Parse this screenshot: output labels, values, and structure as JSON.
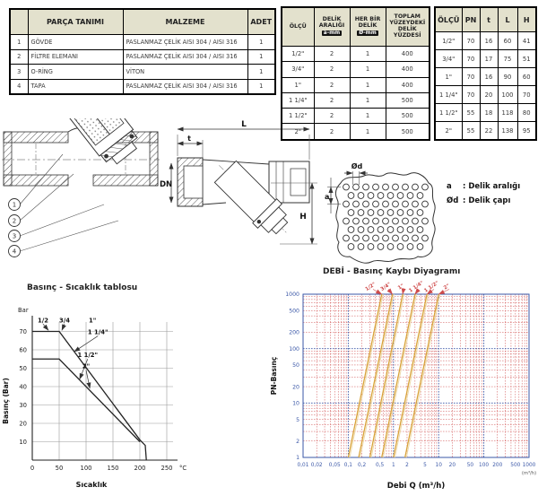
{
  "parts_table": {
    "headers": [
      "",
      "PARÇA TANIMI",
      "MALZEME",
      "ADET"
    ],
    "rows": [
      [
        "1",
        "GÖVDE",
        "PASLANMAZ ÇELİK AISI 304 / AISI 316",
        "1"
      ],
      [
        "2",
        "FİLTRE ELEMANI",
        "PASLANMAZ ÇELİK AISI 304 / AISI 316",
        "1"
      ],
      [
        "3",
        "O-RİNG",
        "VİTON",
        "1"
      ],
      [
        "4",
        "TAPA",
        "PASLANMAZ ÇELİK AISI 304 / AISI 316",
        "1"
      ]
    ]
  },
  "hole_table": {
    "columns": [
      {
        "label": "ÖLÇÜ",
        "chip": ""
      },
      {
        "label": "DELİK ARALIĞI",
        "chip": "a-mm"
      },
      {
        "label": "HER BİR DELİK",
        "chip": "Ø-mm"
      },
      {
        "label": "TOPLAM YÜZEYDEKİ DELİK YÜZDESİ",
        "chip": ""
      }
    ],
    "rows": [
      [
        "1/2\"",
        "2",
        "1",
        "400"
      ],
      [
        "3/4\"",
        "2",
        "1",
        "400"
      ],
      [
        "1\"",
        "2",
        "1",
        "400"
      ],
      [
        "1 1/4\"",
        "2",
        "1",
        "500"
      ],
      [
        "1 1/2\"",
        "2",
        "1",
        "500"
      ],
      [
        "2\"",
        "2",
        "1",
        "500"
      ]
    ]
  },
  "dim_table": {
    "headers": [
      "ÖLÇÜ",
      "PN",
      "t",
      "L",
      "H"
    ],
    "rows": [
      [
        "1/2\"",
        "70",
        "16",
        "60",
        "41"
      ],
      [
        "3/4\"",
        "70",
        "17",
        "75",
        "51"
      ],
      [
        "1\"",
        "70",
        "16",
        "90",
        "60"
      ],
      [
        "1 1/4\"",
        "70",
        "20",
        "100",
        "70"
      ],
      [
        "1 1/2\"",
        "55",
        "18",
        "118",
        "80"
      ],
      [
        "2\"",
        "55",
        "22",
        "138",
        "95"
      ]
    ]
  },
  "drawings": {
    "callouts": [
      "1",
      "2",
      "3",
      "4"
    ],
    "dn_label": "DN",
    "l_label": "L",
    "t_label": "t",
    "h_label": "H",
    "plate": {
      "od_label": "Ød",
      "a_label": "a",
      "legend": [
        {
          "sym": "a",
          "text": ": Delik aralığı"
        },
        {
          "sym": "Ød",
          "text": ": Delik çapı"
        }
      ]
    }
  },
  "colors": {
    "grid_blue": "#3a57a7",
    "grid_red": "#cf4b4b",
    "curve_orange": "#d9a43c",
    "curve_orange_light": "#edd9a8",
    "line_black": "#222222",
    "grid_gray": "#9a9a9a",
    "header_beige": "#e3e1cd"
  },
  "chart_data": [
    {
      "type": "line",
      "title": "Basınç - Sıcaklık tablosu",
      "xlabel": "Sıcaklık",
      "ylabel": "Basınç (Bar)",
      "y_unit": "Bar",
      "x_unit": "°C",
      "xlim": [
        0,
        265
      ],
      "ylim": [
        0,
        80
      ],
      "xticks": [
        0,
        50,
        100,
        150,
        200,
        250
      ],
      "yticks": [
        10,
        20,
        30,
        40,
        50,
        60,
        70
      ],
      "grid": true,
      "legend_position": "none",
      "series": [
        {
          "name": "1/2, 3/4, 1\", 1 1/4\"",
          "points": [
            [
              0,
              70
            ],
            [
              50,
              70
            ],
            [
              200,
              11
            ],
            [
              210,
              8
            ],
            [
              212,
              0
            ]
          ]
        },
        {
          "name": "1 1/2\", 2\"",
          "points": [
            [
              0,
              55
            ],
            [
              50,
              55
            ],
            [
              200,
              10
            ]
          ]
        }
      ],
      "annotations": [
        {
          "text": "1/2",
          "x": 20,
          "y": 75,
          "tx": 30,
          "ty": 70.6
        },
        {
          "text": "3/4",
          "x": 60,
          "y": 75,
          "tx": 55,
          "ty": 70.6
        },
        {
          "text": "1\"",
          "x": 112,
          "y": 75
        },
        {
          "text": "1 1/4\"",
          "x": 122,
          "y": 68.5,
          "tx": 78,
          "ty": 59
        },
        {
          "text": "1 1/2\"",
          "x": 103,
          "y": 56,
          "tx": 88,
          "ty": 44
        },
        {
          "text": "2\"",
          "x": 100,
          "y": 50,
          "tx": 107,
          "ty": 39
        }
      ]
    },
    {
      "type": "line",
      "title": "DEBİ - Basınç Kaybı Diyagramı",
      "xlabel": "Debi Q (m³/h)",
      "ylabel": "PN-Basınç",
      "xscale": "log",
      "yscale": "log",
      "xlim": [
        0.01,
        1000
      ],
      "ylim": [
        1,
        1000
      ],
      "grid": true,
      "xticks": [
        0.01,
        0.02,
        0.05,
        0.1,
        0.2,
        0.5,
        1,
        2,
        5,
        10,
        20,
        50,
        100,
        200,
        500,
        1000
      ],
      "xtick_labels": [
        "0,01",
        "0,02",
        "0,05",
        "0,1",
        "0,2",
        "0,5",
        "1",
        "2",
        "5",
        "10",
        "20",
        "50",
        "100",
        "200",
        "500",
        "1000"
      ],
      "yticks": [
        1,
        2,
        5,
        10,
        20,
        50,
        100,
        200,
        500,
        1000
      ],
      "ytick_labels": [
        "1",
        "2",
        "5",
        "10",
        "20",
        "50",
        "100",
        "200",
        "500",
        "1000"
      ],
      "x_unit_note": "(m³/h)",
      "series": [
        {
          "name": "1/2\"",
          "points": [
            [
              0.1,
              1
            ],
            [
              0.55,
              1000
            ]
          ]
        },
        {
          "name": "3/4\"",
          "points": [
            [
              0.17,
              1
            ],
            [
              0.95,
              1000
            ]
          ]
        },
        {
          "name": "1\"",
          "points": [
            [
              0.3,
              1
            ],
            [
              1.6,
              1000
            ]
          ]
        },
        {
          "name": "1 1/4\"",
          "points": [
            [
              0.55,
              1
            ],
            [
              3.0,
              1000
            ]
          ]
        },
        {
          "name": "1 1/2\"",
          "points": [
            [
              1.0,
              1
            ],
            [
              5.5,
              1000
            ]
          ]
        },
        {
          "name": "2\"",
          "points": [
            [
              1.8,
              1
            ],
            [
              10,
              1000
            ]
          ]
        }
      ]
    }
  ]
}
